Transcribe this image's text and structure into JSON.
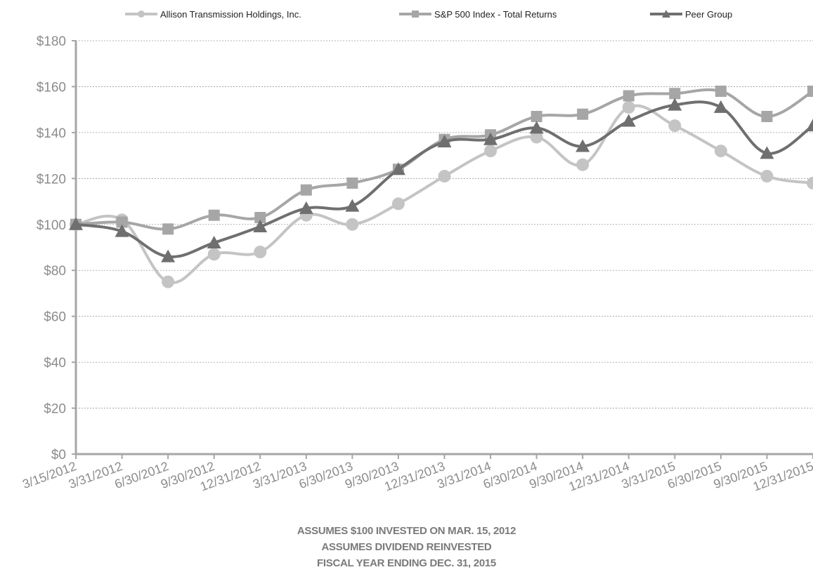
{
  "chart_data": {
    "type": "line",
    "categories": [
      "3/15/2012",
      "3/31/2012",
      "6/30/2012",
      "9/30/2012",
      "12/31/2012",
      "3/31/2013",
      "6/30/2013",
      "9/30/2013",
      "12/31/2013",
      "3/31/2014",
      "6/30/2014",
      "9/30/2014",
      "12/31/2014",
      "3/31/2015",
      "6/30/2015",
      "9/30/2015",
      "12/31/2015"
    ],
    "series": [
      {
        "name": "Allison Transmission Holdings, Inc.",
        "marker": "circle",
        "color": "#c4c4c4",
        "values": [
          100,
          102,
          75,
          87,
          88,
          104,
          100,
          109,
          121,
          132,
          138,
          126,
          151,
          143,
          132,
          121,
          118
        ]
      },
      {
        "name": "S&P 500 Index - Total Returns",
        "marker": "square",
        "color": "#a6a6a6",
        "values": [
          100,
          101,
          98,
          104,
          103,
          115,
          118,
          124,
          137,
          139,
          147,
          148,
          156,
          157,
          158,
          147,
          158
        ]
      },
      {
        "name": "Peer Group",
        "marker": "triangle",
        "color": "#6f6f6f",
        "values": [
          100,
          97,
          86,
          92,
          99,
          107,
          108,
          124,
          136,
          137,
          142,
          134,
          145,
          152,
          151,
          131,
          143
        ]
      }
    ],
    "ylim": [
      0,
      180
    ],
    "yticks": [
      "$0",
      "$20",
      "$40",
      "$60",
      "$80",
      "$100",
      "$120",
      "$140",
      "$160",
      "$180"
    ],
    "grid": true,
    "legend": "top"
  },
  "footnotes": [
    "ASSUMES $100 INVESTED ON MAR. 15, 2012",
    "ASSUMES DIVIDEND REINVESTED",
    "FISCAL YEAR ENDING DEC. 31, 2015"
  ]
}
